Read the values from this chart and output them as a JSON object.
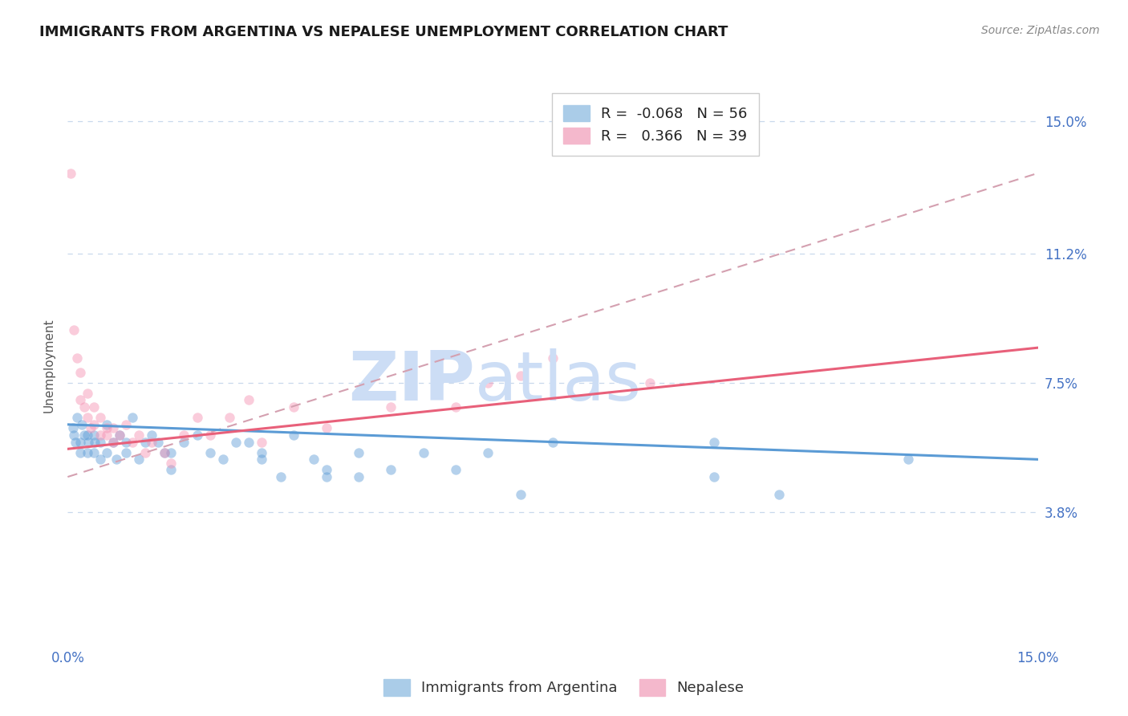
{
  "title": "IMMIGRANTS FROM ARGENTINA VS NEPALESE UNEMPLOYMENT CORRELATION CHART",
  "source_text": "Source: ZipAtlas.com",
  "ylabel": "Unemployment",
  "xmin": 0.0,
  "xmax": 0.15,
  "ymin": 0.0,
  "ymax": 0.16,
  "yticks": [
    0.038,
    0.075,
    0.112,
    0.15
  ],
  "ytick_labels": [
    "3.8%",
    "7.5%",
    "11.2%",
    "15.0%"
  ],
  "xticks": [
    0.0,
    0.15
  ],
  "xtick_labels": [
    "0.0%",
    "15.0%"
  ],
  "legend_line1": "R =  -0.068   N = 56",
  "legend_line2": "R =   0.366   N = 39",
  "blue_color": "#5b9bd5",
  "pink_color": "#f48fb1",
  "pink_scatter_color": "#f48fb1",
  "dashed_color": "#f4a0b8",
  "watermark_color": "#ccddf5",
  "background_color": "#ffffff",
  "grid_color": "#c8d8ec",
  "title_color": "#1a1a1a",
  "axis_tick_color": "#4472c4",
  "blue_scatter": [
    [
      0.0008,
      0.062
    ],
    [
      0.001,
      0.06
    ],
    [
      0.0012,
      0.058
    ],
    [
      0.0015,
      0.065
    ],
    [
      0.002,
      0.058
    ],
    [
      0.002,
      0.055
    ],
    [
      0.0022,
      0.063
    ],
    [
      0.0025,
      0.06
    ],
    [
      0.003,
      0.055
    ],
    [
      0.003,
      0.06
    ],
    [
      0.0032,
      0.058
    ],
    [
      0.004,
      0.055
    ],
    [
      0.004,
      0.06
    ],
    [
      0.0042,
      0.058
    ],
    [
      0.005,
      0.053
    ],
    [
      0.005,
      0.058
    ],
    [
      0.006,
      0.055
    ],
    [
      0.006,
      0.063
    ],
    [
      0.007,
      0.058
    ],
    [
      0.0075,
      0.053
    ],
    [
      0.008,
      0.06
    ],
    [
      0.009,
      0.058
    ],
    [
      0.009,
      0.055
    ],
    [
      0.01,
      0.065
    ],
    [
      0.011,
      0.053
    ],
    [
      0.012,
      0.058
    ],
    [
      0.013,
      0.06
    ],
    [
      0.014,
      0.058
    ],
    [
      0.015,
      0.055
    ],
    [
      0.016,
      0.05
    ],
    [
      0.016,
      0.055
    ],
    [
      0.018,
      0.058
    ],
    [
      0.02,
      0.06
    ],
    [
      0.022,
      0.055
    ],
    [
      0.024,
      0.053
    ],
    [
      0.026,
      0.058
    ],
    [
      0.028,
      0.058
    ],
    [
      0.03,
      0.053
    ],
    [
      0.03,
      0.055
    ],
    [
      0.033,
      0.048
    ],
    [
      0.035,
      0.06
    ],
    [
      0.038,
      0.053
    ],
    [
      0.04,
      0.05
    ],
    [
      0.04,
      0.048
    ],
    [
      0.045,
      0.055
    ],
    [
      0.045,
      0.048
    ],
    [
      0.05,
      0.05
    ],
    [
      0.055,
      0.055
    ],
    [
      0.06,
      0.05
    ],
    [
      0.065,
      0.055
    ],
    [
      0.07,
      0.043
    ],
    [
      0.075,
      0.058
    ],
    [
      0.1,
      0.048
    ],
    [
      0.1,
      0.058
    ],
    [
      0.11,
      0.043
    ],
    [
      0.13,
      0.053
    ]
  ],
  "pink_scatter": [
    [
      0.0005,
      0.135
    ],
    [
      0.001,
      0.09
    ],
    [
      0.0015,
      0.082
    ],
    [
      0.002,
      0.078
    ],
    [
      0.002,
      0.07
    ],
    [
      0.0025,
      0.068
    ],
    [
      0.003,
      0.072
    ],
    [
      0.003,
      0.065
    ],
    [
      0.0035,
      0.062
    ],
    [
      0.004,
      0.068
    ],
    [
      0.004,
      0.063
    ],
    [
      0.005,
      0.06
    ],
    [
      0.005,
      0.065
    ],
    [
      0.006,
      0.062
    ],
    [
      0.006,
      0.06
    ],
    [
      0.007,
      0.062
    ],
    [
      0.007,
      0.058
    ],
    [
      0.008,
      0.06
    ],
    [
      0.009,
      0.063
    ],
    [
      0.01,
      0.058
    ],
    [
      0.011,
      0.06
    ],
    [
      0.012,
      0.055
    ],
    [
      0.013,
      0.058
    ],
    [
      0.015,
      0.055
    ],
    [
      0.016,
      0.052
    ],
    [
      0.018,
      0.06
    ],
    [
      0.02,
      0.065
    ],
    [
      0.022,
      0.06
    ],
    [
      0.025,
      0.065
    ],
    [
      0.028,
      0.07
    ],
    [
      0.03,
      0.058
    ],
    [
      0.035,
      0.068
    ],
    [
      0.04,
      0.062
    ],
    [
      0.05,
      0.068
    ],
    [
      0.06,
      0.068
    ],
    [
      0.065,
      0.075
    ],
    [
      0.07,
      0.077
    ],
    [
      0.075,
      0.082
    ],
    [
      0.09,
      0.075
    ]
  ],
  "blue_trend_x": [
    0.0,
    0.15
  ],
  "blue_trend_y": [
    0.063,
    0.053
  ],
  "pink_trend_x": [
    0.0,
    0.15
  ],
  "pink_trend_y": [
    0.056,
    0.085
  ],
  "dashed_trend_x": [
    0.0,
    0.15
  ],
  "dashed_trend_y": [
    0.048,
    0.135
  ]
}
